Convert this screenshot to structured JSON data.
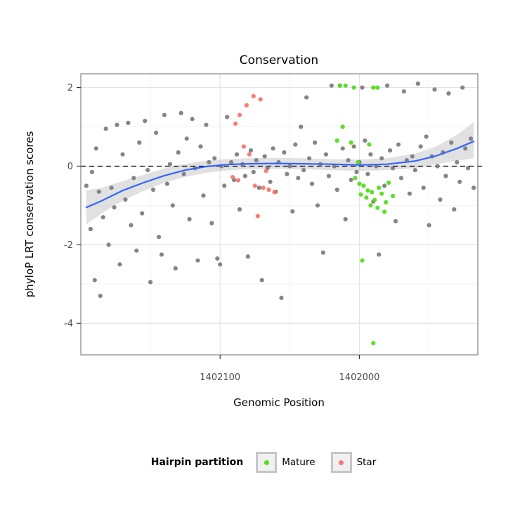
{
  "title": "Conservation",
  "x_axis": {
    "label": "Genomic Position",
    "ticks": [
      1402100,
      1402000
    ]
  },
  "y_axis": {
    "label": "phyloP LRT conservation scores",
    "ticks": [
      2,
      0,
      -2,
      -4
    ]
  },
  "legend": {
    "title": "Hairpin partition",
    "items": [
      {
        "label": "Mature",
        "color": "#54dd1c"
      },
      {
        "label": "Star",
        "color": "#f8766d"
      }
    ]
  },
  "chart_data": {
    "type": "scatter",
    "title": "Conservation",
    "xlabel": "Genomic Position",
    "ylabel": "phyloP LRT conservation scores",
    "x_reversed": true,
    "xlim": [
      1402200,
      1401915
    ],
    "ylim": [
      -4.8,
      2.35
    ],
    "x_ticks": [
      1402100,
      1402000
    ],
    "y_ticks": [
      2,
      0,
      -2,
      -4
    ],
    "hline": {
      "y": 0,
      "style": "dashed",
      "color": "#000000"
    },
    "grid": {
      "major_x": [
        1402100,
        1402000
      ],
      "major_y": [
        2,
        0,
        -2,
        -4
      ],
      "minor_x": [
        1402150,
        1402050,
        1401950
      ],
      "minor_y": [
        1,
        -1,
        -3
      ]
    },
    "colors": {
      "grid_major": "#e3e3e3",
      "grid_minor": "#f2f2f2",
      "panel_border": "#8c8c8c",
      "ribbon": "#9c9c9c",
      "tick_mark": "#333333"
    },
    "legend_position": "bottom",
    "series": [
      {
        "name": "Other",
        "color": "#7e7e7e",
        "points": [
          [
            1402196,
            -0.5
          ],
          [
            1402193,
            -1.6
          ],
          [
            1402192,
            -0.15
          ],
          [
            1402190,
            -2.9
          ],
          [
            1402189,
            0.45
          ],
          [
            1402187,
            -0.65
          ],
          [
            1402186,
            -3.3
          ],
          [
            1402184,
            -1.3
          ],
          [
            1402182,
            0.95
          ],
          [
            1402180,
            -2.0
          ],
          [
            1402178,
            -0.55
          ],
          [
            1402176,
            -1.05
          ],
          [
            1402174,
            1.05
          ],
          [
            1402172,
            -2.5
          ],
          [
            1402170,
            0.3
          ],
          [
            1402168,
            -0.85
          ],
          [
            1402166,
            1.1
          ],
          [
            1402164,
            -1.5
          ],
          [
            1402162,
            -0.3
          ],
          [
            1402160,
            -2.15
          ],
          [
            1402158,
            0.6
          ],
          [
            1402156,
            -1.2
          ],
          [
            1402154,
            1.15
          ],
          [
            1402152,
            -0.1
          ],
          [
            1402150,
            -2.95
          ],
          [
            1402148,
            -0.6
          ],
          [
            1402146,
            0.85
          ],
          [
            1402144,
            -1.8
          ],
          [
            1402142,
            -2.25
          ],
          [
            1402140,
            1.3
          ],
          [
            1402138,
            -0.45
          ],
          [
            1402136,
            0.05
          ],
          [
            1402134,
            -1.0
          ],
          [
            1402132,
            -2.6
          ],
          [
            1402130,
            0.35
          ],
          [
            1402128,
            1.35
          ],
          [
            1402126,
            -0.2
          ],
          [
            1402124,
            0.7
          ],
          [
            1402122,
            -1.35
          ],
          [
            1402120,
            1.2
          ],
          [
            1402118,
            -0.05
          ],
          [
            1402116,
            -2.4
          ],
          [
            1402114,
            0.5
          ],
          [
            1402112,
            -0.75
          ],
          [
            1402110,
            1.05
          ],
          [
            1402108,
            0.1
          ],
          [
            1402106,
            -1.45
          ],
          [
            1402104,
            0.2
          ],
          [
            1402102,
            -2.35
          ],
          [
            1402100,
            -2.5
          ],
          [
            1402099,
            0.0
          ],
          [
            1402097,
            -0.5
          ],
          [
            1402095,
            1.25
          ],
          [
            1402092,
            0.1
          ],
          [
            1402090,
            -0.35
          ],
          [
            1402088,
            0.3
          ],
          [
            1402086,
            -1.1
          ],
          [
            1402084,
            0.05
          ],
          [
            1402082,
            -0.25
          ],
          [
            1402080,
            -2.3
          ],
          [
            1402078,
            0.4
          ],
          [
            1402076,
            -0.15
          ],
          [
            1402074,
            0.15
          ],
          [
            1402072,
            -0.55
          ],
          [
            1402070,
            -2.9
          ],
          [
            1402068,
            0.25
          ],
          [
            1402066,
            -0.05
          ],
          [
            1402064,
            -0.4
          ],
          [
            1402062,
            0.45
          ],
          [
            1402060,
            -0.65
          ],
          [
            1402058,
            0.1
          ],
          [
            1402056,
            -3.35
          ],
          [
            1402054,
            0.35
          ],
          [
            1402052,
            -0.2
          ],
          [
            1402050,
            0.0
          ],
          [
            1402048,
            -1.15
          ],
          [
            1402046,
            0.55
          ],
          [
            1402044,
            -0.3
          ],
          [
            1402042,
            1.0
          ],
          [
            1402040,
            -0.1
          ],
          [
            1402038,
            1.75
          ],
          [
            1402036,
            0.2
          ],
          [
            1402034,
            -0.45
          ],
          [
            1402032,
            0.6
          ],
          [
            1402030,
            -1.0
          ],
          [
            1402028,
            0.05
          ],
          [
            1402026,
            -2.2
          ],
          [
            1402024,
            0.3
          ],
          [
            1402022,
            -0.25
          ],
          [
            1402020,
            2.05
          ],
          [
            1402018,
            0.0
          ],
          [
            1402016,
            -0.6
          ],
          [
            1402014,
            2.05
          ],
          [
            1402012,
            0.45
          ],
          [
            1402010,
            -1.35
          ],
          [
            1402008,
            0.15
          ],
          [
            1402006,
            -0.35
          ],
          [
            1402004,
            0.5
          ],
          [
            1402002,
            -0.15
          ],
          [
            1402000,
            0.1
          ],
          [
            1401998,
            2.0
          ],
          [
            1401996,
            0.65
          ],
          [
            1401994,
            -0.2
          ],
          [
            1401992,
            0.3
          ],
          [
            1401990,
            -0.9
          ],
          [
            1401988,
            0.0
          ],
          [
            1401986,
            -2.25
          ],
          [
            1401984,
            0.2
          ],
          [
            1401982,
            -0.5
          ],
          [
            1401980,
            2.05
          ],
          [
            1401978,
            0.4
          ],
          [
            1401976,
            -0.05
          ],
          [
            1401974,
            -1.4
          ],
          [
            1401972,
            0.55
          ],
          [
            1401970,
            -0.3
          ],
          [
            1401968,
            1.9
          ],
          [
            1401966,
            0.15
          ],
          [
            1401964,
            -0.7
          ],
          [
            1401962,
            0.25
          ],
          [
            1401960,
            -0.1
          ],
          [
            1401958,
            2.1
          ],
          [
            1401956,
            0.5
          ],
          [
            1401954,
            -0.55
          ],
          [
            1401952,
            0.75
          ],
          [
            1401950,
            -1.5
          ],
          [
            1401948,
            0.25
          ],
          [
            1401946,
            1.95
          ],
          [
            1401944,
            0.0
          ],
          [
            1401942,
            -0.85
          ],
          [
            1401940,
            0.35
          ],
          [
            1401938,
            -0.25
          ],
          [
            1401936,
            1.85
          ],
          [
            1401934,
            0.6
          ],
          [
            1401932,
            -1.1
          ],
          [
            1401930,
            0.1
          ],
          [
            1401928,
            -0.4
          ],
          [
            1401926,
            2.0
          ],
          [
            1401924,
            0.45
          ],
          [
            1401922,
            -0.05
          ],
          [
            1401920,
            0.7
          ],
          [
            1401918,
            -0.55
          ]
        ]
      },
      {
        "name": "Star",
        "color": "#f8766d",
        "points": [
          [
            1402086,
            1.3
          ],
          [
            1402081,
            1.55
          ],
          [
            1402076,
            1.78
          ],
          [
            1402071,
            1.7
          ],
          [
            1402089,
            1.08
          ],
          [
            1402083,
            0.5
          ],
          [
            1402079,
            0.3
          ],
          [
            1402091,
            -0.28
          ],
          [
            1402087,
            -0.36
          ],
          [
            1402075,
            -0.5
          ],
          [
            1402069,
            -0.55
          ],
          [
            1402065,
            -0.6
          ],
          [
            1402061,
            -0.66
          ],
          [
            1402073,
            -1.27
          ],
          [
            1402067,
            -0.12
          ]
        ]
      },
      {
        "name": "Mature",
        "color": "#54dd1c",
        "points": [
          [
            1402014,
            2.05
          ],
          [
            1402010,
            2.05
          ],
          [
            1402004,
            2.0
          ],
          [
            1401990,
            2.0
          ],
          [
            1401987,
            2.0
          ],
          [
            1402012,
            1.0
          ],
          [
            1402016,
            0.65
          ],
          [
            1402006,
            0.6
          ],
          [
            1401993,
            0.55
          ],
          [
            1402001,
            0.1
          ],
          [
            1402003,
            -0.3
          ],
          [
            1402000,
            -0.45
          ],
          [
            1401997,
            -0.5
          ],
          [
            1401994,
            -0.62
          ],
          [
            1401991,
            -0.66
          ],
          [
            1401999,
            -0.72
          ],
          [
            1401995,
            -0.8
          ],
          [
            1401989,
            -0.86
          ],
          [
            1401986,
            -0.55
          ],
          [
            1401984,
            -0.7
          ],
          [
            1401981,
            -0.92
          ],
          [
            1401992,
            -1.0
          ],
          [
            1401987,
            -1.06
          ],
          [
            1401979,
            -0.42
          ],
          [
            1401976,
            -0.76
          ],
          [
            1401982,
            -1.16
          ],
          [
            1401998,
            -2.4
          ],
          [
            1401990,
            -4.5
          ]
        ]
      }
    ],
    "smooth": {
      "color": "#3366ff",
      "points": [
        [
          1402196,
          -1.05,
          -1.48,
          -0.62
        ],
        [
          1402185,
          -0.88,
          -1.2,
          -0.55
        ],
        [
          1402170,
          -0.62,
          -0.88,
          -0.38
        ],
        [
          1402155,
          -0.42,
          -0.63,
          -0.22
        ],
        [
          1402140,
          -0.24,
          -0.42,
          -0.06
        ],
        [
          1402125,
          -0.1,
          -0.27,
          0.06
        ],
        [
          1402110,
          -0.01,
          -0.17,
          0.14
        ],
        [
          1402095,
          0.04,
          -0.11,
          0.18
        ],
        [
          1402080,
          0.06,
          -0.08,
          0.2
        ],
        [
          1402060,
          0.07,
          -0.07,
          0.21
        ],
        [
          1402040,
          0.06,
          -0.08,
          0.2
        ],
        [
          1402020,
          0.05,
          -0.1,
          0.18
        ],
        [
          1402000,
          0.03,
          -0.12,
          0.17
        ],
        [
          1401980,
          0.05,
          -0.1,
          0.2
        ],
        [
          1401960,
          0.13,
          -0.05,
          0.32
        ],
        [
          1401945,
          0.26,
          0.05,
          0.5
        ],
        [
          1401930,
          0.45,
          0.14,
          0.8
        ],
        [
          1401918,
          0.63,
          0.2,
          1.12
        ]
      ]
    }
  }
}
